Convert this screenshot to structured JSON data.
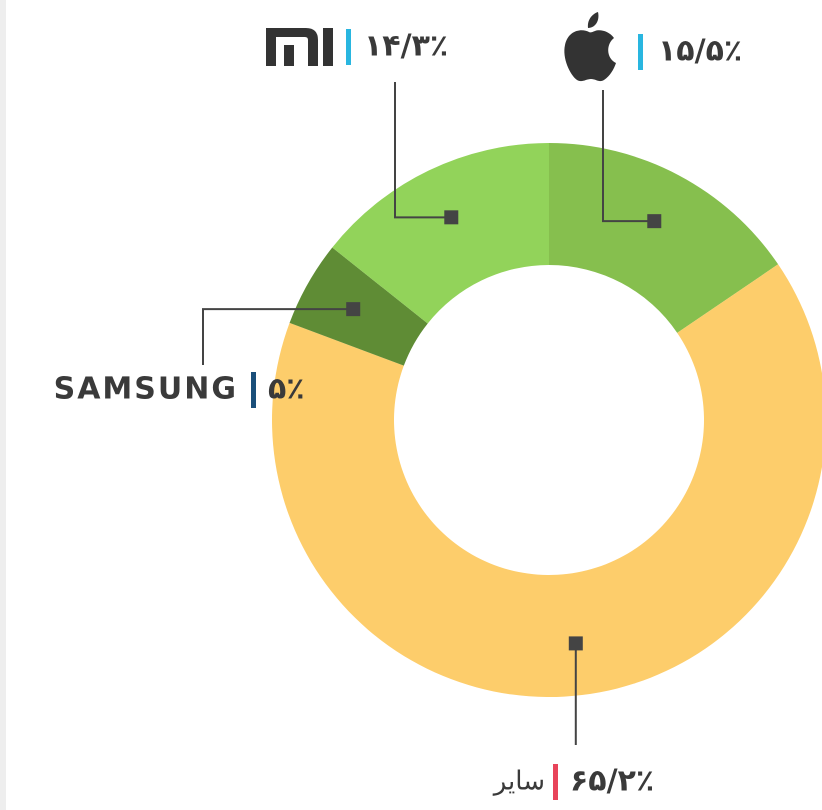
{
  "chart_data": {
    "type": "pie",
    "donut": true,
    "categories": [
      null,
      "سایر",
      "SAMSUNG",
      null
    ],
    "values": [
      15.5,
      65.2,
      5,
      14.3
    ],
    "value_labels": [
      "۱۵/۵٪",
      "۶۵/۲٪",
      "۵٪",
      "۱۴/۳٪"
    ],
    "colors": [
      "#86bf4e",
      "#fdcd6b",
      "#5f8c35",
      "#92d35a"
    ],
    "accent_colors": [
      "#29b6e0",
      "#e8445a",
      "#1a4f7a",
      "#29b6e0"
    ]
  }
}
